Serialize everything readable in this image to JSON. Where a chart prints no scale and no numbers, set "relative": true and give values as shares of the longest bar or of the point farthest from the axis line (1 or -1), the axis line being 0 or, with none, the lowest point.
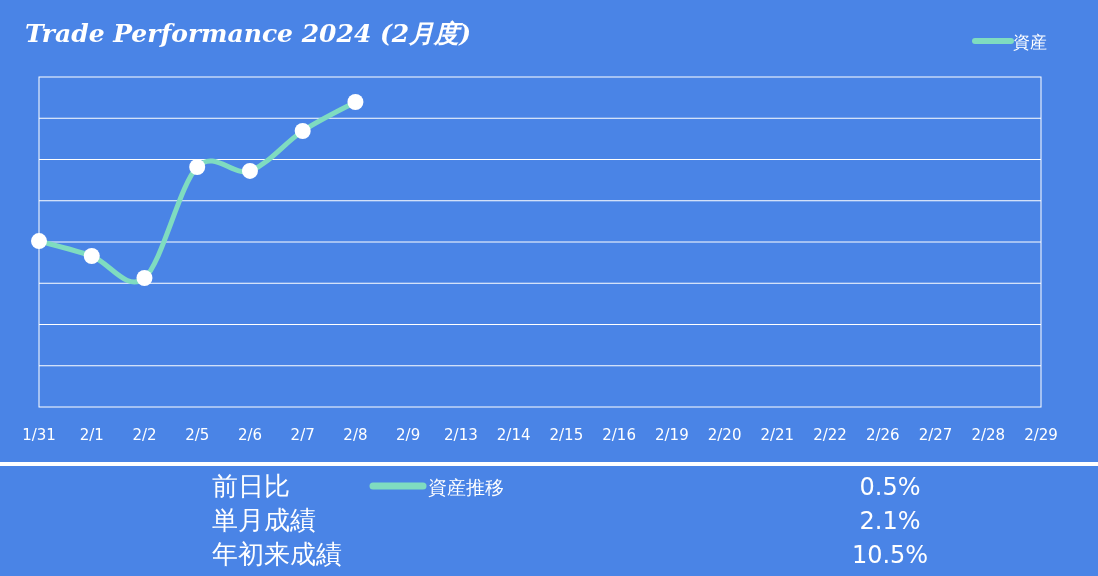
{
  "chart_data": [
    {
      "type": "line",
      "title": "Trade Performance 2024 (2月度)",
      "relative": true,
      "categories": [
        "1/31",
        "2/1",
        "2/2",
        "2/5",
        "2/6",
        "2/7",
        "2/8",
        "2/9",
        "2/13",
        "2/14",
        "2/15",
        "2/16",
        "2/19",
        "2/20",
        "2/21",
        "2/22",
        "2/26",
        "2/27",
        "2/28",
        "2/29"
      ],
      "series": [
        {
          "name": "資産",
          "color": "#7fdcc0",
          "values": [
            0.544,
            0.495,
            0.423,
            0.787,
            0.774,
            0.905,
            1.0,
            null,
            null,
            null,
            null,
            null,
            null,
            null,
            null,
            null,
            null,
            null,
            null,
            null
          ]
        }
      ],
      "marker": "circle",
      "grid": "y",
      "legend": "top right"
    },
    {
      "type": "other",
      "annotations": [
        "前日比",
        "単月成績",
        "年初来成績",
        "0.5%",
        "2.1%",
        "10.5%",
        "資産推移"
      ]
    }
  ]
}
